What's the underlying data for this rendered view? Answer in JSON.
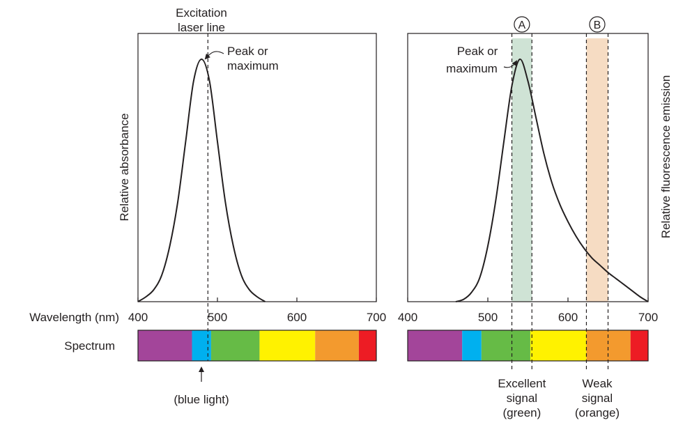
{
  "shared": {
    "xlabel": "Wavelength (nm)",
    "spectrum_label": "Spectrum",
    "xticks": [
      400,
      500,
      600,
      700
    ],
    "xlim": [
      400,
      700
    ],
    "spectrum_bands": [
      {
        "color": "violet",
        "hex": "#a3459a",
        "from": 400,
        "to": 468
      },
      {
        "color": "blue",
        "hex": "#00b0ef",
        "from": 468,
        "to": 492
      },
      {
        "color": "green",
        "hex": "#66bb46",
        "from": 492,
        "to": 553
      },
      {
        "color": "yellow",
        "hex": "#fff200",
        "from": 553,
        "to": 623
      },
      {
        "color": "orange",
        "hex": "#f39a2e",
        "from": 623,
        "to": 678
      },
      {
        "color": "red",
        "hex": "#ed1c24",
        "from": 678,
        "to": 700
      }
    ]
  },
  "left": {
    "ylabel": "Relative absorbance",
    "excitation_label_1": "Excitation",
    "excitation_label_2": "laser line",
    "excitation_wavelength": 488,
    "peak_label_1": "Peak or",
    "peak_label_2": "maximum",
    "blue_light_label": "(blue light)"
  },
  "right": {
    "ylabel": "Relative fluorescence emission",
    "peak_label_1": "Peak or",
    "peak_label_2": "maximum",
    "band_a": {
      "label": "A",
      "from": 530,
      "to": 555,
      "hex": "#cfe3d5"
    },
    "band_b": {
      "label": "B",
      "from": 623,
      "to": 650,
      "hex": "#f6dcc3"
    },
    "band_a_caption": [
      "Excellent",
      "signal",
      "(green)"
    ],
    "band_b_caption": [
      "Weak",
      "signal",
      "(orange)"
    ]
  },
  "chart_data": [
    {
      "type": "line",
      "ylabel": "Relative absorbance",
      "xlim": [
        400,
        700
      ],
      "ylim": [
        0,
        1.0
      ],
      "series": [
        {
          "x": [
            400,
            410,
            420,
            430,
            440,
            450,
            460,
            470,
            480,
            490,
            500,
            510,
            520,
            530,
            540,
            550,
            560
          ],
          "values": [
            0.0,
            0.02,
            0.05,
            0.11,
            0.23,
            0.41,
            0.66,
            0.91,
            1.0,
            0.91,
            0.66,
            0.41,
            0.23,
            0.11,
            0.05,
            0.02,
            0.0
          ]
        }
      ]
    },
    {
      "type": "line",
      "ylabel": "Relative fluorescence emission",
      "xlim": [
        400,
        700
      ],
      "ylim": [
        0,
        1.0
      ],
      "series": [
        {
          "x": [
            460,
            470,
            480,
            490,
            500,
            510,
            520,
            530,
            540,
            550,
            560,
            570,
            580,
            590,
            600,
            610,
            620,
            630,
            640,
            650,
            660,
            670,
            680,
            690,
            700
          ],
          "values": [
            0.0,
            0.01,
            0.04,
            0.1,
            0.23,
            0.42,
            0.66,
            0.89,
            1.0,
            0.91,
            0.76,
            0.61,
            0.49,
            0.4,
            0.33,
            0.27,
            0.22,
            0.18,
            0.15,
            0.12,
            0.095,
            0.07,
            0.045,
            0.02,
            0.0
          ]
        }
      ]
    }
  ]
}
